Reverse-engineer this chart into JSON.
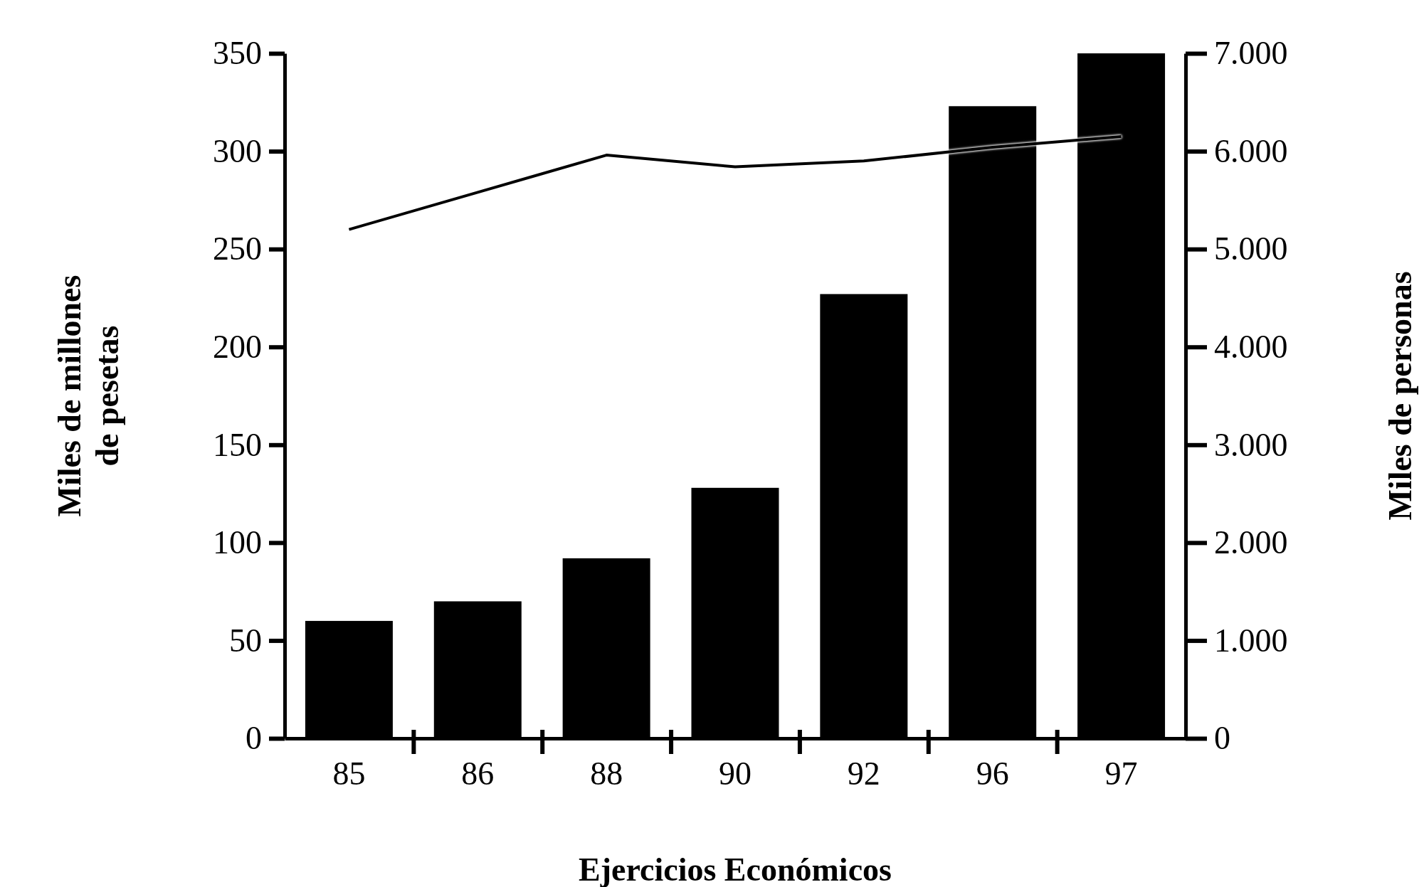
{
  "chart_data": {
    "type": "bar",
    "xlabel": "Ejercicios Económicos",
    "ylabel": "Miles de millones de pesetas",
    "y2label": "Miles de personas",
    "categories": [
      "85",
      "86",
      "88",
      "90",
      "92",
      "96",
      "97"
    ],
    "series": [
      {
        "color": "#000000",
        "values": [
          60,
          70,
          92,
          128,
          227,
          323,
          350
        ]
      },
      {
        "type": "line",
        "axis": "y2",
        "color": "#000000",
        "values": [
          5200,
          5580,
          5960,
          5840,
          5900,
          6040,
          6150
        ]
      }
    ],
    "ylim": [
      0,
      350
    ],
    "yticks": [
      0,
      50,
      100,
      150,
      200,
      250,
      300,
      350
    ],
    "y2lim": [
      0,
      7000
    ],
    "y2ticks": [
      0,
      {
        "value": 1000,
        "label": "1.000"
      },
      {
        "value": 2000,
        "label": "2.000"
      },
      {
        "value": 3000,
        "label": "3.000"
      },
      {
        "value": 4000,
        "label": "4.000"
      },
      {
        "value": 5000,
        "label": "5.000"
      },
      {
        "value": 6000,
        "label": "6.000"
      },
      {
        "value": 7000,
        "label": "7.000"
      }
    ],
    "grid": false
  }
}
